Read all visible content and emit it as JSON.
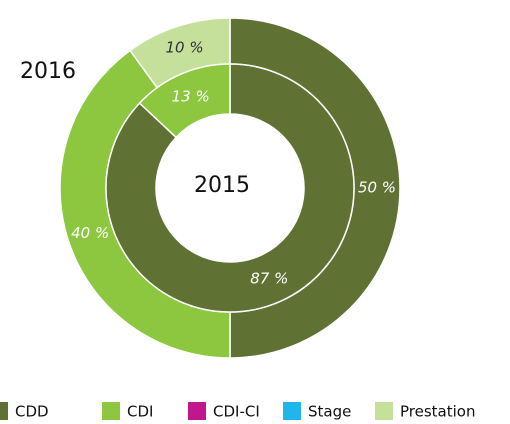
{
  "chart_data": {
    "type": "donut",
    "categories": [
      "CDD",
      "CDI",
      "CDI-CI",
      "Stage",
      "Prestation"
    ],
    "colors": [
      "#5f7233",
      "#8dc63f",
      "#c1168d",
      "#1fb6e9",
      "#c5e09b"
    ],
    "series": [
      {
        "name": "2016",
        "values": [
          50,
          40,
          null,
          null,
          10
        ],
        "value_labels": [
          "50 %",
          "40 %",
          null,
          null,
          "10 %"
        ]
      },
      {
        "name": "2015",
        "values": [
          87,
          13,
          null,
          null,
          null
        ],
        "value_labels": [
          "87 %",
          "13 %",
          null,
          null,
          null
        ]
      }
    ],
    "legend": "bottom"
  }
}
